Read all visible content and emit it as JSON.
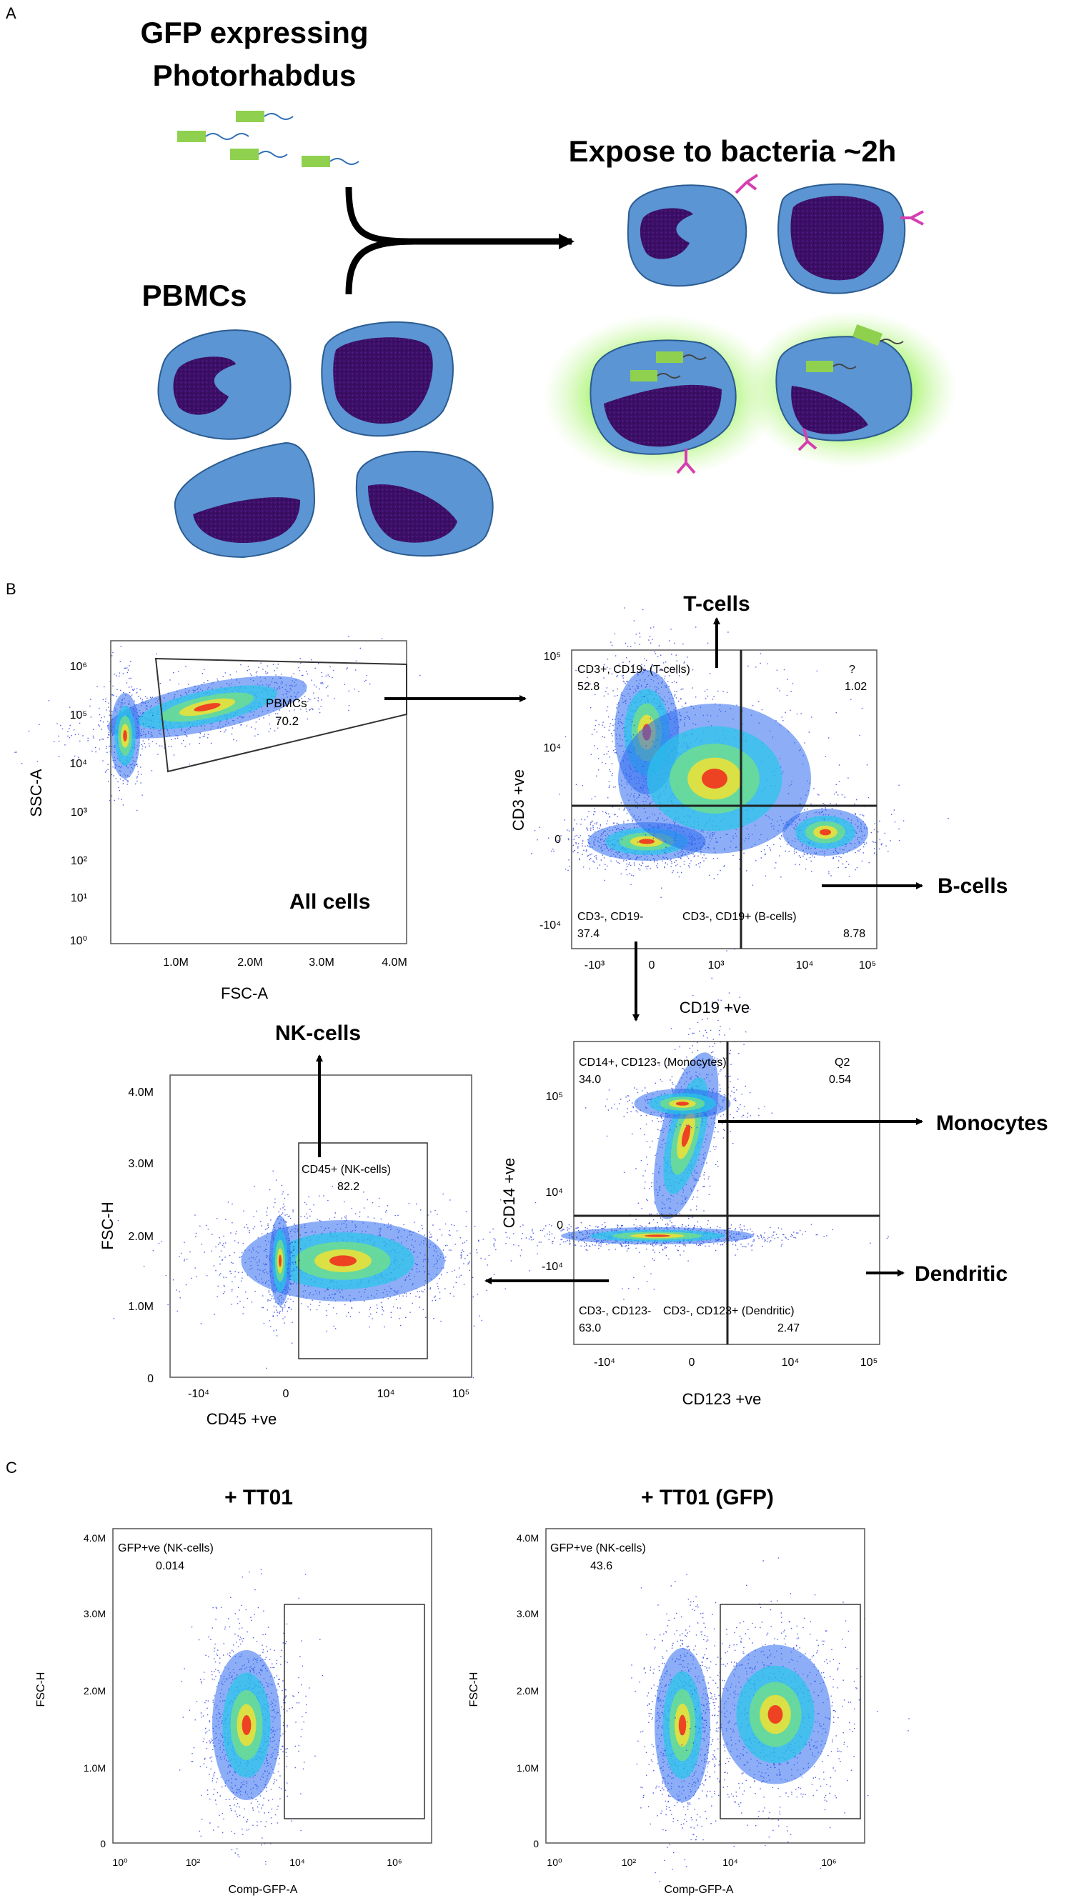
{
  "panel_a": {
    "letter": "A",
    "bacteria_label_1": "GFP expressing",
    "bacteria_label_2": "Photorhabdus",
    "pbmc_label": "PBMCs",
    "expose_label": "Expose to bacteria ~2h"
  },
  "panel_b": {
    "letter": "B",
    "plot1": {
      "xlabel": "FSC-A",
      "ylabel": "SSC-A",
      "xticks": [
        "1.0M",
        "2.0M",
        "3.0M",
        "4.0M"
      ],
      "yticks": [
        "10⁰",
        "10¹",
        "10²",
        "10³",
        "10⁴",
        "10⁵",
        "10⁶"
      ],
      "gate_name": "PBMCs",
      "gate_value": "70.2",
      "caption": "All cells"
    },
    "plot2": {
      "xlabel": "CD19 +ve",
      "ylabel": "CD3 +ve",
      "xticks": [
        "-10³",
        "0",
        "10³",
        "10⁴",
        "10⁵"
      ],
      "yticks": [
        "10⁵",
        "10⁴",
        "0",
        "-10⁴"
      ],
      "q_tl_name": "CD3+, CD19- (T-cells)",
      "q_tl_value": "52.8",
      "q_tr_name": "?",
      "q_tr_value": "1.02",
      "q_bl_name": "CD3-, CD19-",
      "q_bl_value": "37.4",
      "q_br_name": "CD3-, CD19+ (B-cells)",
      "q_br_value": "8.78",
      "arrow_top_label": "T-cells",
      "arrow_right_label": "B-cells"
    },
    "plot3": {
      "xlabel": "CD123 +ve",
      "ylabel": "CD14 +ve",
      "xticks": [
        "-10⁴",
        "0",
        "10⁴",
        "10⁵"
      ],
      "yticks": [
        "10⁵",
        "10⁴",
        "0",
        "-10⁴"
      ],
      "q_tl_name": "CD14+, CD123- (Monocytes)",
      "q_tl_value": "34.0",
      "q_tr_name": "Q2",
      "q_tr_value": "0.54",
      "q_bl_name": "CD3-, CD123-",
      "q_bl_value": "63.0",
      "q_br_name": "CD3-, CD123+ (Dendritic)",
      "q_br_value": "2.47",
      "arrow_mono_label": "Monocytes",
      "arrow_dend_label": "Dendritic"
    },
    "plot4": {
      "xlabel": "CD45 +ve",
      "ylabel": "FSC-H",
      "xticks": [
        "-10⁴",
        "0",
        "10⁴",
        "10⁵"
      ],
      "yticks": [
        "0",
        "1.0M",
        "2.0M",
        "3.0M",
        "4.0M"
      ],
      "gate_name": "CD45+ (NK-cells)",
      "gate_value": "82.2",
      "arrow_label": "NK-cells"
    }
  },
  "panel_c": {
    "letter": "C",
    "plot_left": {
      "title": "+ TT01",
      "gate_name": "GFP+ve (NK-cells)",
      "gate_value": "0.014",
      "xlabel": "Comp-GFP-A",
      "ylabel": "FSC-H",
      "xticks": [
        "10⁰",
        "10²",
        "10⁴",
        "10⁶"
      ],
      "yticks": [
        "0",
        "1.0M",
        "2.0M",
        "3.0M",
        "4.0M"
      ]
    },
    "plot_right": {
      "title": "+ TT01 (GFP)",
      "gate_name": "GFP+ve (NK-cells)",
      "gate_value": "43.6",
      "xlabel": "Comp-GFP-A",
      "ylabel": "FSC-H",
      "xticks": [
        "10⁰",
        "10²",
        "10⁴",
        "10⁶"
      ],
      "yticks": [
        "0",
        "1.0M",
        "2.0M",
        "3.0M",
        "4.0M"
      ]
    }
  }
}
